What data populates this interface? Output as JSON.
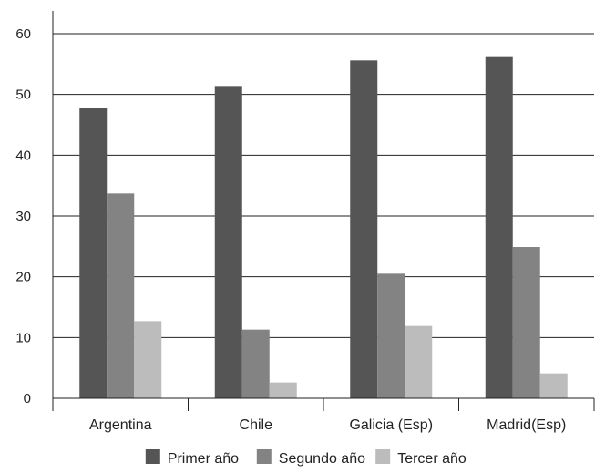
{
  "chart_data": {
    "type": "bar",
    "title": "",
    "xlabel": "",
    "ylabel": "",
    "categories": [
      "Argentina",
      "Chile",
      "Galicia (Esp)",
      "Madrid(Esp)"
    ],
    "series": [
      {
        "name": "Primer año",
        "values": [
          47.8,
          51.4,
          55.6,
          56.3
        ],
        "color": "#555555"
      },
      {
        "name": "Segundo año",
        "values": [
          33.7,
          11.3,
          20.5,
          24.9
        ],
        "color": "#838383"
      },
      {
        "name": "Tercer año",
        "values": [
          12.7,
          2.6,
          11.9,
          4.1
        ],
        "color": "#bcbcbc"
      }
    ],
    "ylim": [
      0,
      60
    ],
    "yticks": [
      0,
      10,
      20,
      30,
      40,
      50,
      60
    ],
    "grid": true,
    "legend_position": "bottom"
  }
}
